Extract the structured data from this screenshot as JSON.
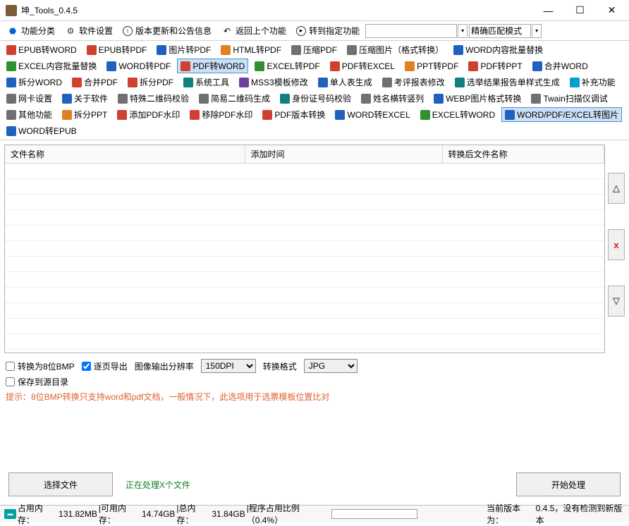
{
  "window": {
    "title": "坤_Tools_0.4.5"
  },
  "winbtns": {
    "min": "—",
    "max": "☐",
    "close": "✕"
  },
  "menu": {
    "category": "功能分类",
    "settings": "软件设置",
    "update": "版本更新和公告信息",
    "back": "返回上个功能",
    "goto": "转到指定功能",
    "match_mode": "精确匹配模式"
  },
  "toolbar": [
    {
      "l": "EPUB转WORD",
      "c": "ic-red"
    },
    {
      "l": "EPUB转PDF",
      "c": "ic-red"
    },
    {
      "l": "图片转PDF",
      "c": "ic-blue"
    },
    {
      "l": "HTML转PDF",
      "c": "ic-orange"
    },
    {
      "l": "压缩PDF",
      "c": "ic-gray"
    },
    {
      "l": "压缩图片（格式转换）",
      "c": "ic-gray"
    },
    {
      "l": "WORD内容批量替换",
      "c": "ic-blue"
    },
    {
      "l": "EXCEL内容批量替换",
      "c": "ic-green"
    },
    {
      "l": "WORD转PDF",
      "c": "ic-blue"
    },
    {
      "l": "PDF转WORD",
      "c": "ic-red",
      "active": true
    },
    {
      "l": "EXCEL转PDF",
      "c": "ic-green"
    },
    {
      "l": "PDF转EXCEL",
      "c": "ic-red"
    },
    {
      "l": "PPT转PDF",
      "c": "ic-orange"
    },
    {
      "l": "PDF转PPT",
      "c": "ic-red"
    },
    {
      "l": "合并WORD",
      "c": "ic-blue"
    },
    {
      "l": "拆分WORD",
      "c": "ic-blue"
    },
    {
      "l": "合并PDF",
      "c": "ic-red"
    },
    {
      "l": "拆分PDF",
      "c": "ic-red"
    },
    {
      "l": "系统工具",
      "c": "ic-teal"
    },
    {
      "l": "MSS3模板修改",
      "c": "ic-purple"
    },
    {
      "l": "单人表生成",
      "c": "ic-blue"
    },
    {
      "l": "考评报表修改",
      "c": "ic-gray"
    },
    {
      "l": "选举结果报告单样式生成",
      "c": "ic-teal"
    },
    {
      "l": "补充功能",
      "c": "ic-cyan"
    },
    {
      "l": "网卡设置",
      "c": "ic-gray"
    },
    {
      "l": "关于软件",
      "c": "ic-blue"
    },
    {
      "l": "特殊二维码校验",
      "c": "ic-gray"
    },
    {
      "l": "简易二维码生成",
      "c": "ic-gray"
    },
    {
      "l": "身份证号码校验",
      "c": "ic-teal"
    },
    {
      "l": "姓名横转竖列",
      "c": "ic-gray"
    },
    {
      "l": "WEBP图片格式转换",
      "c": "ic-blue"
    },
    {
      "l": "Twain扫描仪调试",
      "c": "ic-gray"
    },
    {
      "l": "其他功能",
      "c": "ic-gray"
    },
    {
      "l": "拆分PPT",
      "c": "ic-orange"
    },
    {
      "l": "添加PDF水印",
      "c": "ic-red"
    },
    {
      "l": "移除PDF水印",
      "c": "ic-red"
    },
    {
      "l": "PDF版本转换",
      "c": "ic-red"
    },
    {
      "l": "WORD转EXCEL",
      "c": "ic-blue"
    },
    {
      "l": "EXCEL转WORD",
      "c": "ic-green"
    },
    {
      "l": "WORD/PDF/EXCEL转图片",
      "c": "ic-blue",
      "active": true
    },
    {
      "l": "WORD转EPUB",
      "c": "ic-blue"
    }
  ],
  "table": {
    "col1": "文件名称",
    "col2": "添加时间",
    "col3": "转换后文件名称"
  },
  "side": {
    "up": "△",
    "del": "x",
    "down": "▽"
  },
  "options": {
    "to8bmp": "转换为8位BMP",
    "perpage": "逐页导出",
    "dpi_label": "图像输出分辨率",
    "dpi_value": "150DPI",
    "fmt_label": "转换格式",
    "fmt_value": "JPG",
    "save_src": "保存到源目录",
    "hint": "提示：8位BMP转换只支持word和pdf文档，一般情况下，此选项用于选票模板位置比对"
  },
  "buttons": {
    "choose": "选择文件",
    "processing": "正在处理X个文件",
    "start": "开始处理"
  },
  "status": {
    "mem": "占用内存：",
    "mem_v": "131.82MB",
    "avail": "|可用内存：",
    "avail_v": "14.74GB",
    "total": "|总内存：",
    "total_v": "31.84GB",
    "ratio": "|程序占用比例（0.4%）",
    "version": "当前版本为：",
    "version_v": "0.4.5，没有检测到新版本"
  }
}
